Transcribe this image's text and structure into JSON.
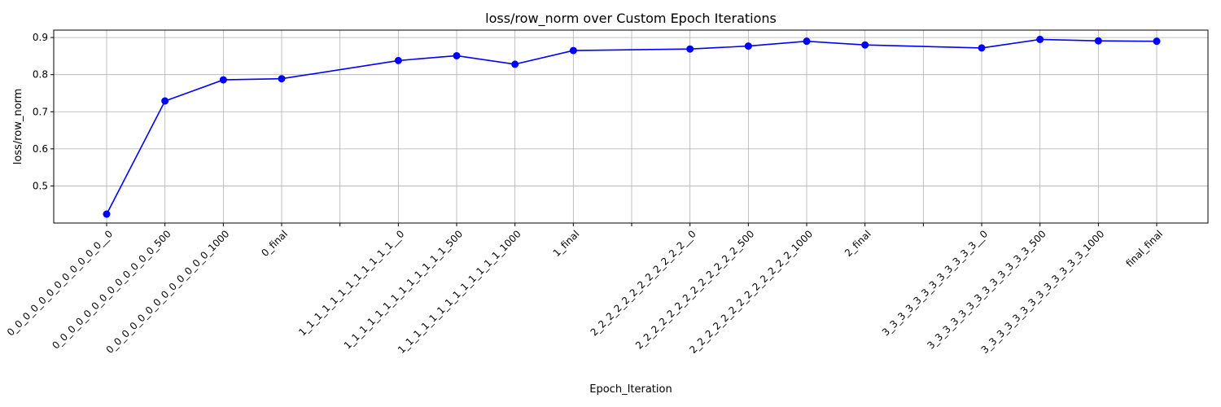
{
  "chart_data": {
    "type": "line",
    "title": "loss/row_norm over Custom Epoch Iterations",
    "xlabel": "Epoch_Iteration",
    "ylabel": "loss/row_norm",
    "ylim": [
      0.4,
      0.92
    ],
    "yticks": [
      0.5,
      0.6,
      0.7,
      0.8,
      0.9
    ],
    "grid": true,
    "categories": [
      "0_0_0_0_0_0_0_0_0_0_0_0__0",
      "0_0_0_0_0_0_0_0_0_0_0_0_0_500",
      "0_0_0_0_0_0_0_0_0_0_0_0_0_1000",
      "0_final",
      "",
      "1_1_1_1_1_1_1_1_1_1_1_1__0",
      "1_1_1_1_1_1_1_1_1_1_1_1_1_500",
      "1_1_1_1_1_1_1_1_1_1_1_1_1_1000",
      "1_final",
      "",
      "2_2_2_2_2_2_2_2_2_2_2_2__0",
      "2_2_2_2_2_2_2_2_2_2_2_2_2_500",
      "2_2_2_2_2_2_2_2_2_2_2_2_2_1000",
      "2_final",
      "",
      "3_3_3_3_3_3_3_3_3_3_3_3__0",
      "3_3_3_3_3_3_3_3_3_3_3_3_3_500",
      "3_3_3_3_3_3_3_3_3_3_3_3_3_1000",
      "final_final"
    ],
    "series": [
      {
        "color": "#0000ff",
        "marker": "circle",
        "values": [
          0.424,
          0.729,
          0.786,
          0.789,
          null,
          0.838,
          0.851,
          0.828,
          0.865,
          null,
          0.869,
          0.877,
          0.89,
          0.88,
          null,
          0.872,
          0.895,
          0.891,
          0.89
        ]
      }
    ]
  }
}
